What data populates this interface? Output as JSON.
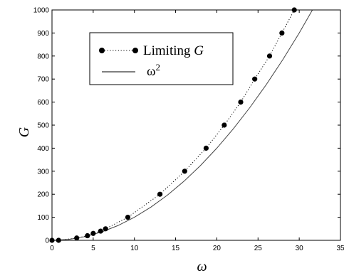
{
  "chart_data": {
    "type": "scatter",
    "xlabel": "ω",
    "ylabel": "G",
    "xlim": [
      0,
      35
    ],
    "ylim": [
      0,
      1000
    ],
    "xticks": [
      "0",
      "5",
      "10",
      "15",
      "20",
      "25",
      "30",
      "35"
    ],
    "yticks": [
      "0",
      "100",
      "200",
      "300",
      "400",
      "500",
      "600",
      "700",
      "800",
      "900",
      "1000"
    ],
    "grid": false,
    "legend_position": "top-left",
    "series": [
      {
        "name": "Limiting G",
        "legend_prefix": "Limiting ",
        "legend_italic": "G",
        "style": "dotted-markers",
        "color": "#000000",
        "x": [
          0.0,
          0.8,
          3.0,
          4.3,
          5.0,
          5.9,
          6.5,
          9.2,
          13.1,
          16.1,
          18.7,
          20.9,
          22.9,
          24.6,
          26.4,
          27.9,
          29.4
        ],
        "y": [
          0,
          0,
          10,
          20,
          30,
          40,
          50,
          100,
          200,
          300,
          400,
          500,
          600,
          700,
          800,
          900,
          1000
        ]
      },
      {
        "name": "ω2",
        "legend_base": "ω",
        "legend_sup": "2",
        "style": "solid-line",
        "color": "#444444",
        "x": [
          0,
          2,
          4,
          6,
          8,
          10,
          12,
          14,
          16,
          18,
          20,
          22,
          24,
          26,
          28,
          30,
          31.6
        ],
        "y": [
          0,
          4,
          16,
          36,
          64,
          100,
          144,
          196,
          256,
          324,
          400,
          484,
          576,
          676,
          784,
          900,
          1000
        ]
      }
    ]
  }
}
